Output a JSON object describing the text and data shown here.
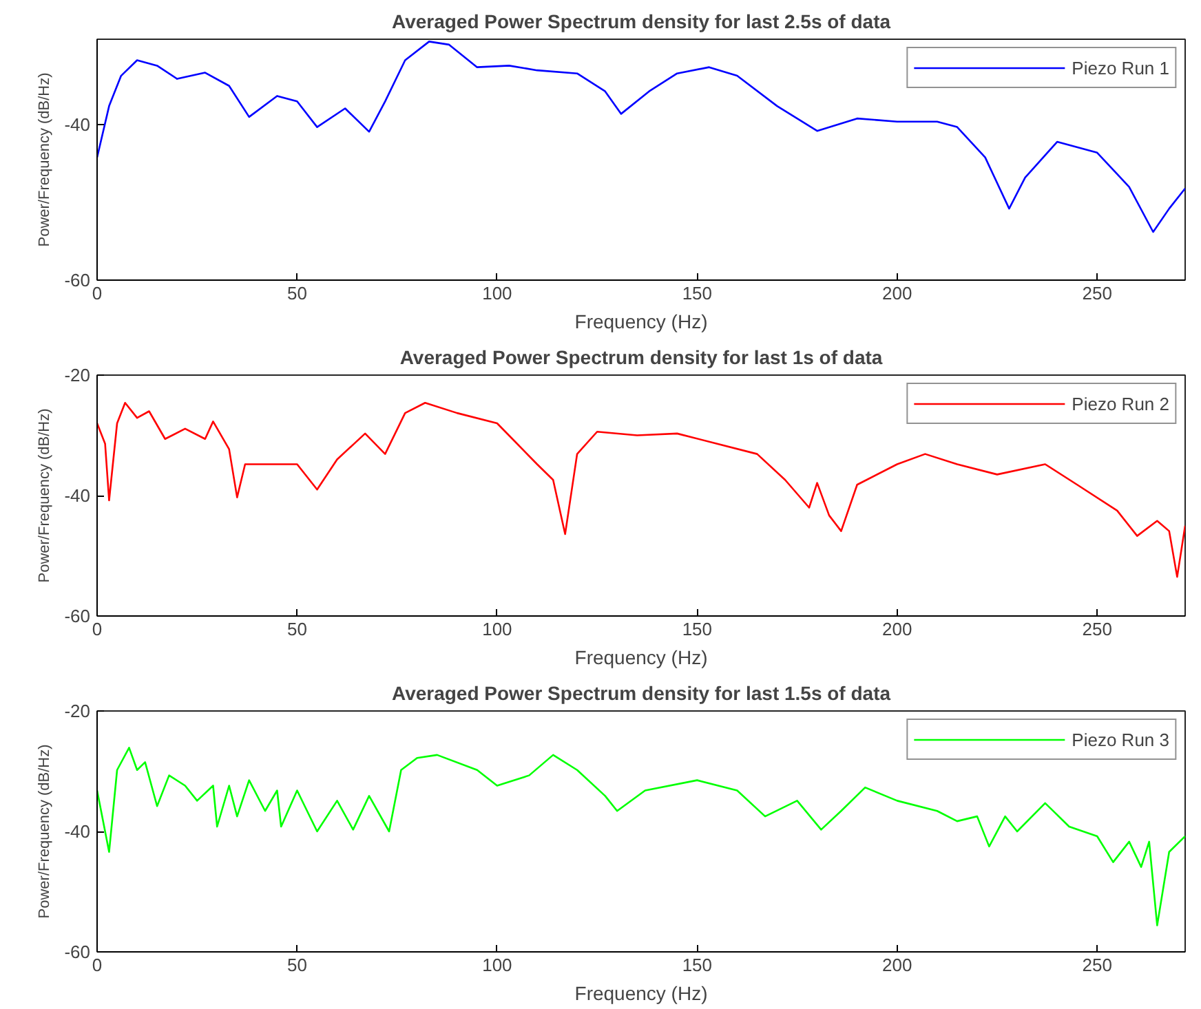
{
  "chart_data": [
    {
      "type": "line",
      "title": "Averaged Power Spectrum density for last 2.5s of data",
      "xlabel": "Frequency (Hz)",
      "ylabel": "Power/Frequency (dB/Hz)",
      "xlim": [
        0,
        272
      ],
      "ylim": [
        -60,
        -29
      ],
      "xticks": [
        0,
        50,
        100,
        150,
        200,
        250
      ],
      "yticks": [
        -60,
        -40
      ],
      "legend": "top right",
      "grid": false,
      "x": [
        0,
        3,
        6,
        10,
        15,
        20,
        27,
        33,
        38,
        45,
        50,
        55,
        62,
        68,
        72,
        77,
        83,
        88,
        95,
        103,
        110,
        120,
        127,
        131,
        138,
        145,
        153,
        160,
        170,
        180,
        190,
        200,
        210,
        215,
        222,
        228,
        232,
        240,
        250,
        258,
        264,
        268,
        272
      ],
      "series": [
        {
          "name": "Piezo Run 1",
          "color": "#0000ff",
          "values": [
            -44.2,
            -37.6,
            -33.7,
            -31.7,
            -32.4,
            -34.1,
            -33.3,
            -35,
            -39,
            -36.3,
            -37,
            -40.3,
            -37.9,
            -40.9,
            -37,
            -31.7,
            -29.3,
            -29.7,
            -32.6,
            -32.4,
            -33,
            -33.4,
            -35.7,
            -38.6,
            -35.7,
            -33.4,
            -32.6,
            -33.7,
            -37.6,
            -40.8,
            -39.2,
            -39.6,
            -39.6,
            -40.3,
            -44.2,
            -50.8,
            -46.8,
            -42.2,
            -43.6,
            -48,
            -53.8,
            -50.8,
            -48.2
          ]
        }
      ]
    },
    {
      "type": "line",
      "title": "Averaged Power Spectrum density for last 1s of data",
      "xlabel": "Frequency (Hz)",
      "ylabel": "Power/Frequency (dB/Hz)",
      "xlim": [
        0,
        272
      ],
      "ylim": [
        -60,
        -20
      ],
      "xticks": [
        0,
        50,
        100,
        150,
        200,
        250
      ],
      "yticks": [
        -60,
        -40,
        -20
      ],
      "legend": "top right",
      "grid": false,
      "x": [
        0,
        2,
        3,
        5,
        7,
        10,
        13,
        17,
        22,
        27,
        29,
        33,
        35,
        37,
        45,
        50,
        55,
        60,
        67,
        72,
        77,
        82,
        90,
        100,
        110,
        114,
        117,
        120,
        125,
        135,
        145,
        155,
        165,
        172,
        178,
        180,
        183,
        186,
        190,
        200,
        207,
        215,
        225,
        237,
        245,
        255,
        260,
        265,
        268,
        270,
        272
      ],
      "series": [
        {
          "name": "Piezo Run 2",
          "color": "#ff0000",
          "values": [
            -28,
            -31.4,
            -40.8,
            -28,
            -24.6,
            -27.1,
            -26,
            -30.6,
            -28.9,
            -30.6,
            -27.7,
            -32.3,
            -40.3,
            -34.8,
            -34.8,
            -34.8,
            -39,
            -34,
            -29.7,
            -33.1,
            -26.3,
            -24.6,
            -26.3,
            -28,
            -34.8,
            -37.4,
            -46.4,
            -33.1,
            -29.4,
            -30,
            -29.7,
            -31.4,
            -33.1,
            -37.4,
            -42,
            -37.9,
            -43.3,
            -45.9,
            -38.2,
            -34.8,
            -33.1,
            -34.8,
            -36.5,
            -34.8,
            -38.2,
            -42.5,
            -46.7,
            -44.2,
            -45.9,
            -53.5,
            -45
          ]
        }
      ]
    },
    {
      "type": "line",
      "title": "Averaged Power Spectrum density for last 1.5s of data",
      "xlabel": "Frequency (Hz)",
      "ylabel": "Power/Frequency (dB/Hz)",
      "xlim": [
        0,
        272
      ],
      "ylim": [
        -60,
        -20
      ],
      "xticks": [
        0,
        50,
        100,
        150,
        200,
        250
      ],
      "yticks": [
        -60,
        -40,
        -20
      ],
      "legend": "top right",
      "grid": false,
      "x": [
        0,
        3,
        5,
        8,
        10,
        12,
        15,
        18,
        22,
        25,
        29,
        30,
        33,
        35,
        38,
        42,
        45,
        46,
        50,
        55,
        60,
        64,
        68,
        73,
        76,
        80,
        85,
        95,
        100,
        108,
        114,
        120,
        127,
        130,
        137,
        150,
        160,
        167,
        175,
        181,
        186,
        192,
        200,
        210,
        215,
        220,
        223,
        227,
        230,
        237,
        243,
        250,
        254,
        258,
        261,
        263,
        265,
        268,
        272
      ],
      "series": [
        {
          "name": "Piezo Run 3",
          "color": "#00ff00",
          "values": [
            -33.2,
            -43.4,
            -29.8,
            -26.1,
            -29.8,
            -28.5,
            -35.8,
            -30.7,
            -32.4,
            -34.9,
            -32.4,
            -39.2,
            -32.4,
            -37.5,
            -31.5,
            -36.6,
            -33.2,
            -39.2,
            -33.2,
            -40,
            -34.9,
            -39.7,
            -34.1,
            -40,
            -29.8,
            -27.8,
            -27.3,
            -29.8,
            -32.4,
            -30.7,
            -27.3,
            -29.8,
            -34.1,
            -36.6,
            -33.2,
            -31.5,
            -33.2,
            -37.5,
            -34.9,
            -39.7,
            -36.6,
            -32.7,
            -34.9,
            -36.6,
            -38.3,
            -37.5,
            -42.5,
            -37.5,
            -40,
            -35.3,
            -39.2,
            -40.8,
            -45.1,
            -41.7,
            -45.9,
            -41.7,
            -55.6,
            -43.4,
            -40.8
          ]
        }
      ]
    }
  ]
}
